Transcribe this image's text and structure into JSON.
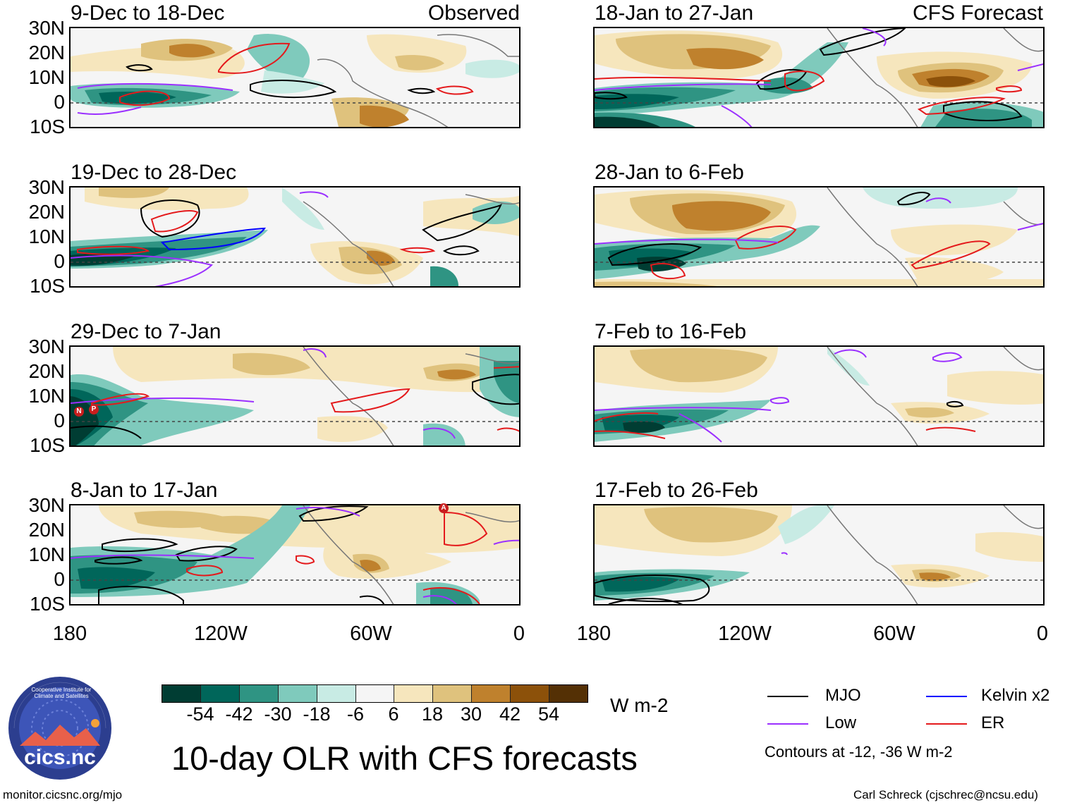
{
  "main_title": "10-day OLR with CFS forecasts",
  "column_tags": {
    "left": "Observed",
    "right": "CFS Forecast"
  },
  "panels": {
    "left": [
      {
        "label": "9-Dec to 18-Dec"
      },
      {
        "label": "19-Dec to 28-Dec"
      },
      {
        "label": "29-Dec to 7-Jan"
      },
      {
        "label": "8-Jan to 17-Jan"
      }
    ],
    "right": [
      {
        "label": "18-Jan to 27-Jan"
      },
      {
        "label": "28-Jan to 6-Feb"
      },
      {
        "label": "7-Feb to 16-Feb"
      },
      {
        "label": "17-Feb to 26-Feb"
      }
    ]
  },
  "lat_labels": [
    "30N",
    "20N",
    "10N",
    "0",
    "10S"
  ],
  "lon_labels": [
    "180",
    "120W",
    "60W",
    "0"
  ],
  "colorbar": {
    "unit": "W m-2",
    "ticks": [
      "-54",
      "-42",
      "-30",
      "-18",
      "-6",
      "6",
      "18",
      "30",
      "42",
      "54"
    ],
    "colors": [
      "#003d33",
      "#00665a",
      "#2f9483",
      "#7fcabc",
      "#c8ebe4",
      "#f5f5f5",
      "#f6e6bd",
      "#dfc27d",
      "#bf812d",
      "#8c510a",
      "#543005"
    ]
  },
  "legend": {
    "items": [
      {
        "label": "MJO",
        "color": "#000000"
      },
      {
        "label": "Kelvin x2",
        "color": "#0000ff"
      },
      {
        "label": "Low",
        "color": "#9b30ff"
      },
      {
        "label": "ER",
        "color": "#e41a1c"
      }
    ],
    "note": "Contours at -12, -36 W m-2"
  },
  "logo": {
    "text": "cics.nc",
    "ring_text": "Cooperative Institute for Climate and Satellites"
  },
  "footer": {
    "left": "monitor.cicsnc.org/mjo",
    "right": "Carl Schreck (cjschrec@ncsu.edu)"
  },
  "storm_markers": [
    "N",
    "P",
    "A"
  ],
  "icons": {
    "logo": "cicsnc-logo-icon"
  }
}
